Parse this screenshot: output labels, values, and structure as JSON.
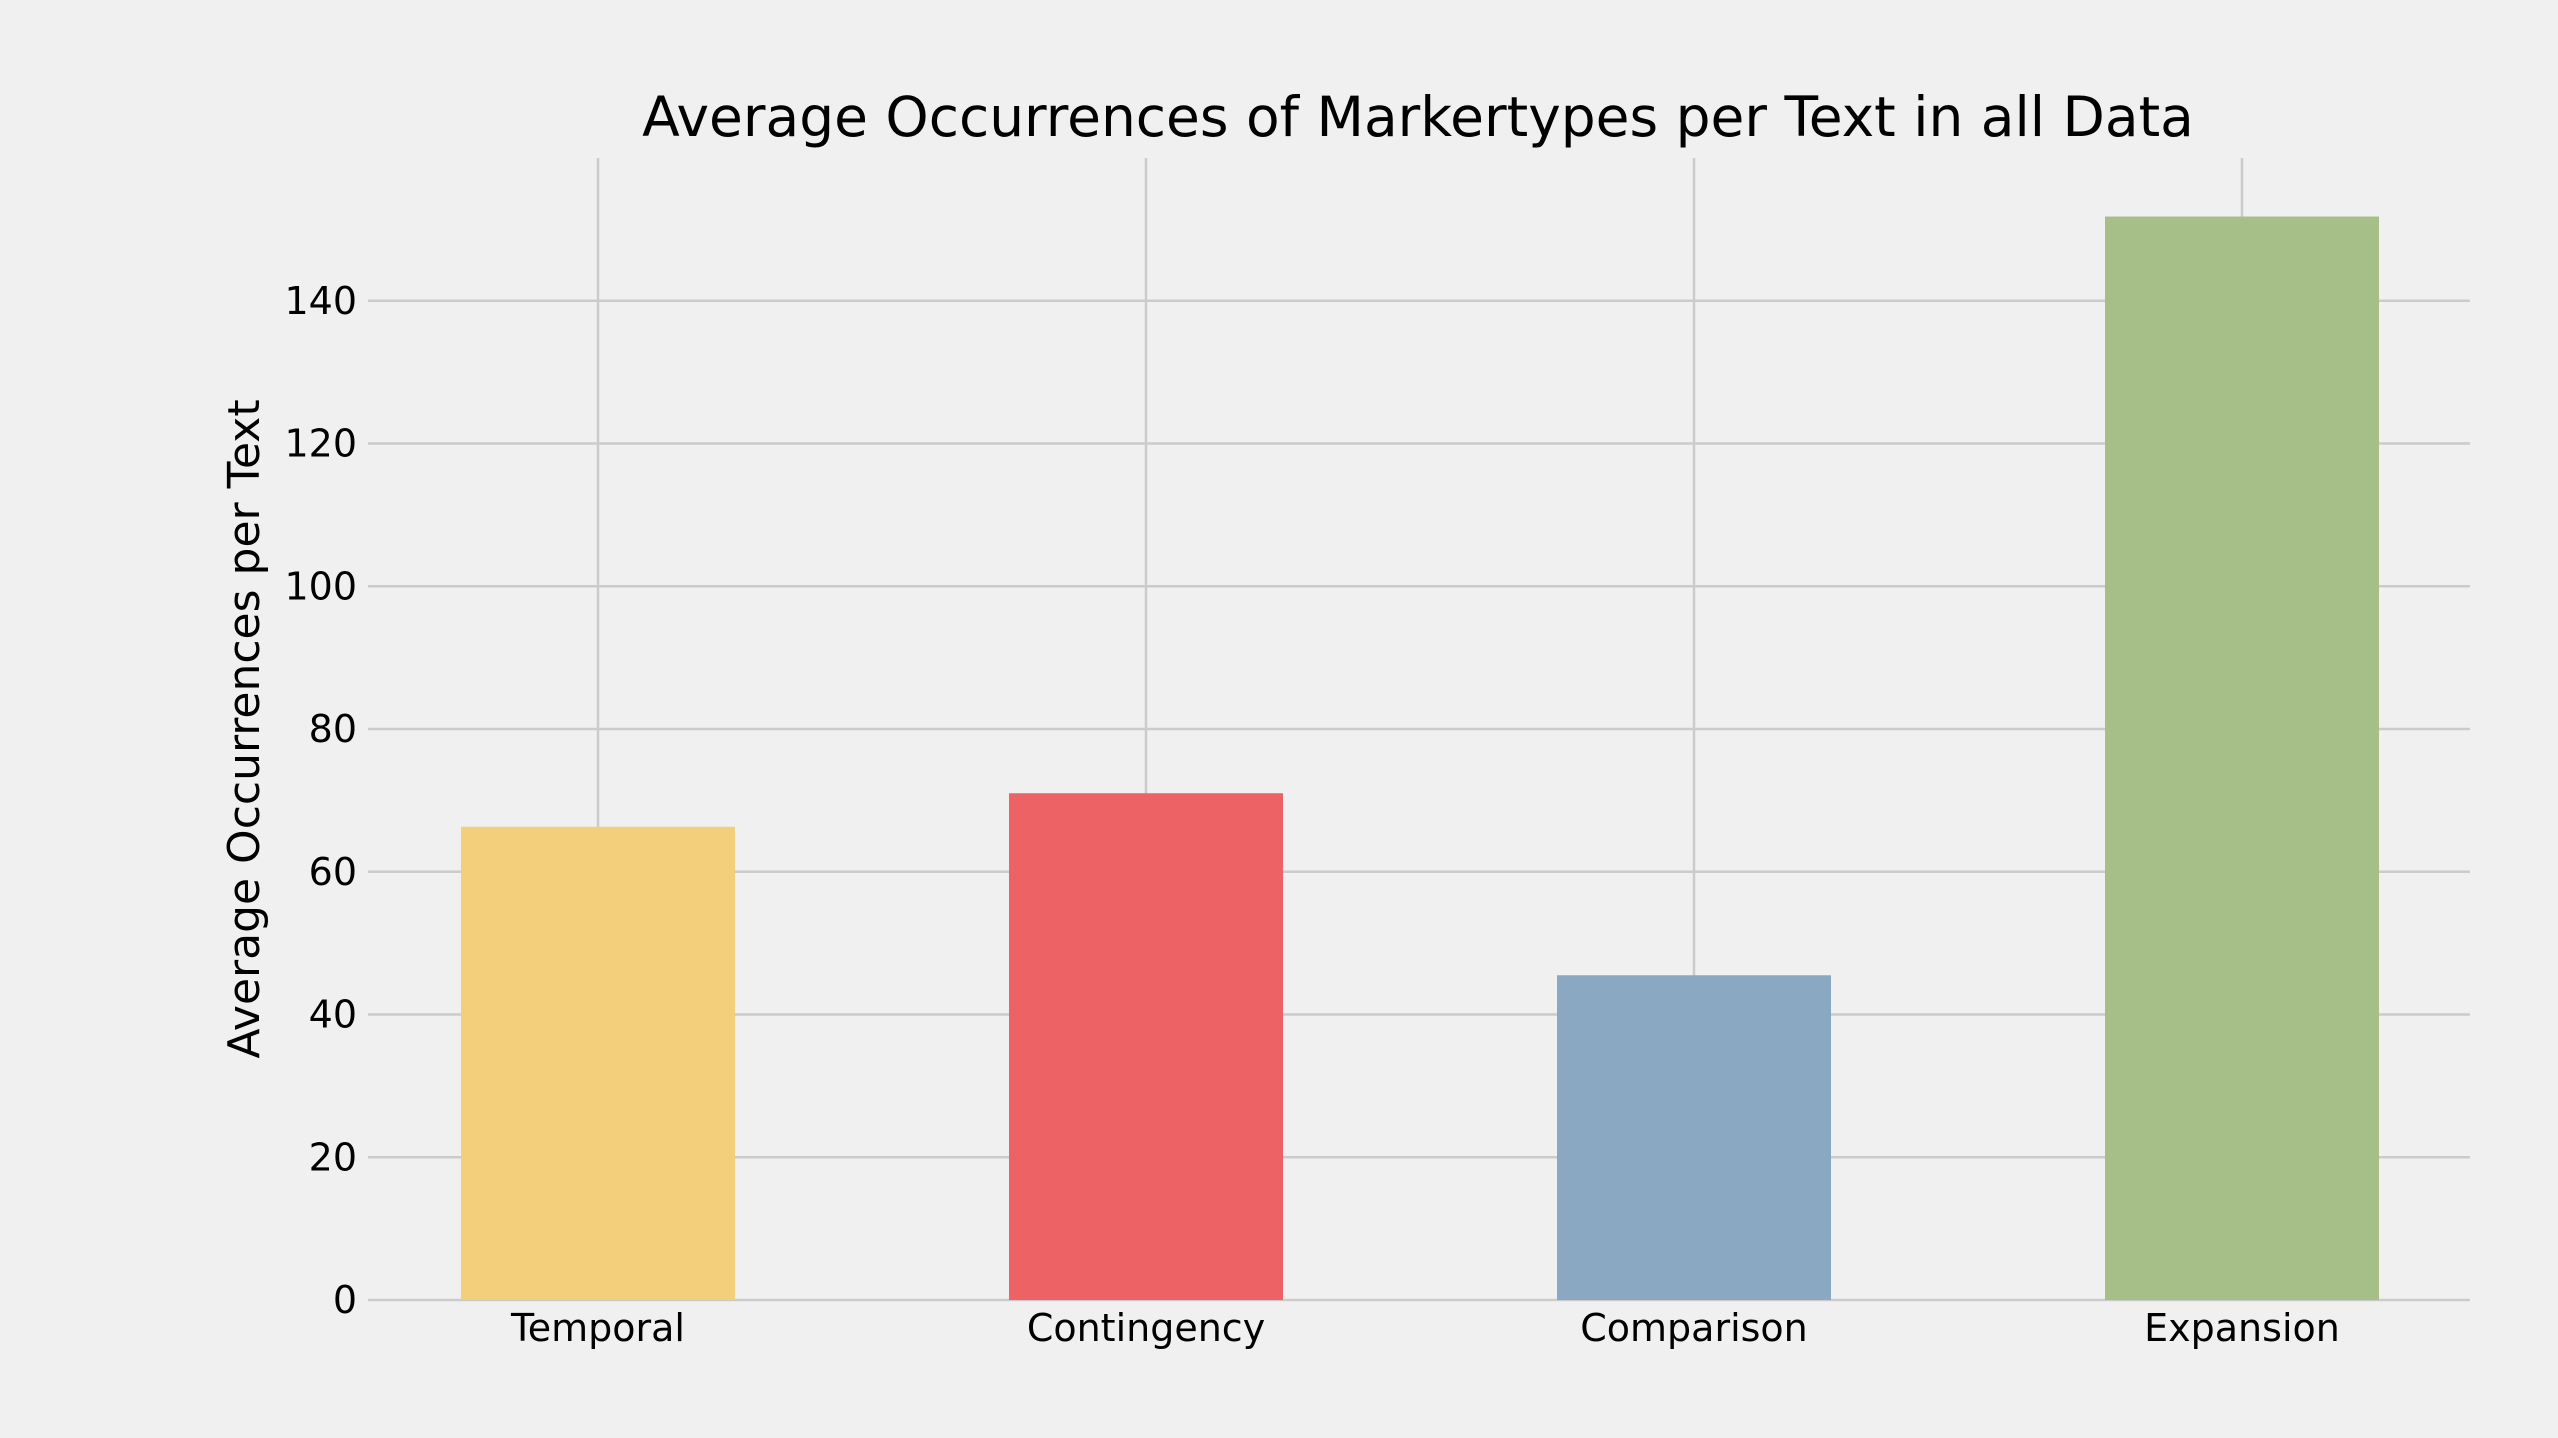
{
  "chart_data": {
    "type": "bar",
    "title": "Average Occurrences of Markertypes per Text in all Data",
    "xlabel": "",
    "ylabel": "Average Occurrences per Text",
    "categories": [
      "Temporal",
      "Contingency",
      "Comparison",
      "Expansion"
    ],
    "values": [
      66.3,
      71.0,
      45.5,
      151.8
    ],
    "colors": [
      "#f3cf7c",
      "#ec6265",
      "#8aa8c1",
      "#a6be88"
    ],
    "ylim": [
      0,
      160
    ],
    "yticks": [
      0,
      20,
      40,
      60,
      80,
      100,
      120,
      140
    ],
    "grid": true,
    "background": "#f0f0f0",
    "grid_color": "#cbcbcb"
  }
}
